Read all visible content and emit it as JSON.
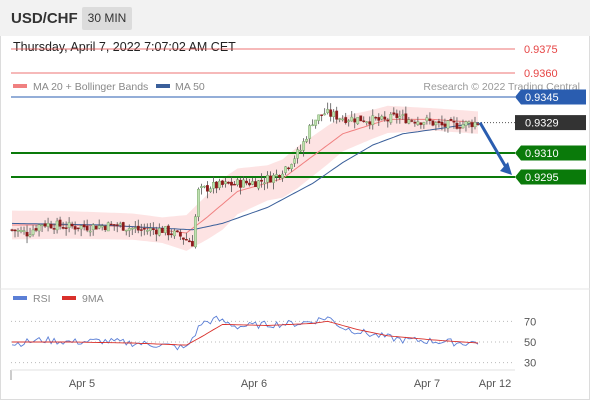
{
  "header": {
    "symbol": "USD/CHF",
    "timeframe": "30 MIN",
    "datetime": "Thursday, April 7, 2022 7:07:02 AM CET"
  },
  "legend": {
    "ma20_label": "MA 20 + Bollinger Bands",
    "ma50_label": "MA 50",
    "source": "Research © 2022 Trading Central",
    "rsi_label": "RSI",
    "rsi_ma_label": "9MA"
  },
  "colors": {
    "ma20": "#f08080",
    "ma50": "#3a5f9a",
    "band_fill": "#fde3e3",
    "candle_up": "#bfe0b0",
    "candle_down": "#8b1a1a",
    "resistance": "#e64545",
    "pivot": "#2a5db0",
    "support": "#0a7a0a",
    "last_price": "#333333",
    "arrow": "#2a5db0",
    "rsi": "#5b7fd6",
    "rsi_ma": "#d9302b"
  },
  "chart_data": [
    {
      "type": "candlestick",
      "title": "USD/CHF 30 MIN",
      "ylim": [
        0.9225,
        0.9385
      ],
      "x_labels": [
        "Apr 5",
        "Apr 6",
        "Apr 7",
        "Apr 12"
      ],
      "levels": [
        {
          "label": "0.9375",
          "value": 0.9375,
          "kind": "resistance"
        },
        {
          "label": "0.9360",
          "value": 0.936,
          "kind": "resistance"
        },
        {
          "label": "0.9345",
          "value": 0.9345,
          "kind": "pivot"
        },
        {
          "label": "0.9329",
          "value": 0.9329,
          "kind": "last"
        },
        {
          "label": "0.9310",
          "value": 0.931,
          "kind": "support"
        },
        {
          "label": "0.9295",
          "value": 0.9295,
          "kind": "support"
        }
      ],
      "price_anchors": [
        [
          0,
          0.9262
        ],
        [
          5,
          0.926
        ],
        [
          10,
          0.9266
        ],
        [
          18,
          0.9264
        ],
        [
          25,
          0.9264
        ],
        [
          35,
          0.9265
        ],
        [
          42,
          0.9262
        ],
        [
          50,
          0.9262
        ],
        [
          56,
          0.9258
        ],
        [
          60,
          0.9254
        ],
        [
          62,
          0.9286
        ],
        [
          66,
          0.9289
        ],
        [
          75,
          0.9291
        ],
        [
          82,
          0.9292
        ],
        [
          88,
          0.9296
        ],
        [
          92,
          0.9303
        ],
        [
          96,
          0.9312
        ],
        [
          100,
          0.933
        ],
        [
          104,
          0.9335
        ],
        [
          110,
          0.9332
        ],
        [
          118,
          0.9331
        ],
        [
          124,
          0.933
        ],
        [
          128,
          0.9333
        ],
        [
          132,
          0.9331
        ],
        [
          138,
          0.933
        ],
        [
          143,
          0.9327
        ],
        [
          150,
          0.9328
        ],
        [
          155,
          0.9329
        ]
      ],
      "ma20_anchors": [
        [
          0,
          0.9265
        ],
        [
          20,
          0.9265
        ],
        [
          40,
          0.9264
        ],
        [
          58,
          0.926
        ],
        [
          65,
          0.927
        ],
        [
          75,
          0.9286
        ],
        [
          90,
          0.9294
        ],
        [
          100,
          0.9308
        ],
        [
          110,
          0.9322
        ],
        [
          125,
          0.9331
        ],
        [
          140,
          0.9331
        ],
        [
          155,
          0.9329
        ]
      ],
      "ma50_anchors": [
        [
          0,
          0.9266
        ],
        [
          30,
          0.9265
        ],
        [
          60,
          0.9262
        ],
        [
          70,
          0.9266
        ],
        [
          85,
          0.9276
        ],
        [
          100,
          0.9291
        ],
        [
          110,
          0.9304
        ],
        [
          120,
          0.9315
        ],
        [
          130,
          0.9322
        ],
        [
          145,
          0.9326
        ],
        [
          155,
          0.9329
        ]
      ],
      "band_width_anchors": [
        [
          0,
          0.0009
        ],
        [
          50,
          0.0008
        ],
        [
          60,
          0.0012
        ],
        [
          70,
          0.0016
        ],
        [
          85,
          0.0011
        ],
        [
          95,
          0.0013
        ],
        [
          105,
          0.0012
        ],
        [
          120,
          0.0009
        ],
        [
          140,
          0.0007
        ],
        [
          155,
          0.0007
        ]
      ],
      "projection": {
        "from": 0.9329,
        "to": 0.9295
      }
    },
    {
      "type": "line",
      "title": "RSI",
      "ylim": [
        20,
        80
      ],
      "y_ticks": [
        30,
        50,
        70
      ],
      "series": [
        {
          "name": "RSI",
          "anchors": [
            [
              0,
              48
            ],
            [
              10,
              52
            ],
            [
              20,
              50
            ],
            [
              30,
              51
            ],
            [
              40,
              49
            ],
            [
              50,
              47
            ],
            [
              58,
              44
            ],
            [
              63,
              68
            ],
            [
              68,
              72
            ],
            [
              75,
              65
            ],
            [
              85,
              67
            ],
            [
              95,
              68
            ],
            [
              100,
              70
            ],
            [
              105,
              74
            ],
            [
              110,
              64
            ],
            [
              120,
              57
            ],
            [
              130,
              52
            ],
            [
              140,
              51
            ],
            [
              150,
              49
            ],
            [
              155,
              50
            ]
          ]
        },
        {
          "name": "9MA",
          "anchors": [
            [
              0,
              50
            ],
            [
              20,
              50
            ],
            [
              40,
              49
            ],
            [
              58,
              47
            ],
            [
              63,
              55
            ],
            [
              70,
              67
            ],
            [
              85,
              66
            ],
            [
              100,
              68
            ],
            [
              105,
              70
            ],
            [
              115,
              62
            ],
            [
              125,
              56
            ],
            [
              140,
              52
            ],
            [
              155,
              49
            ]
          ]
        }
      ]
    }
  ]
}
